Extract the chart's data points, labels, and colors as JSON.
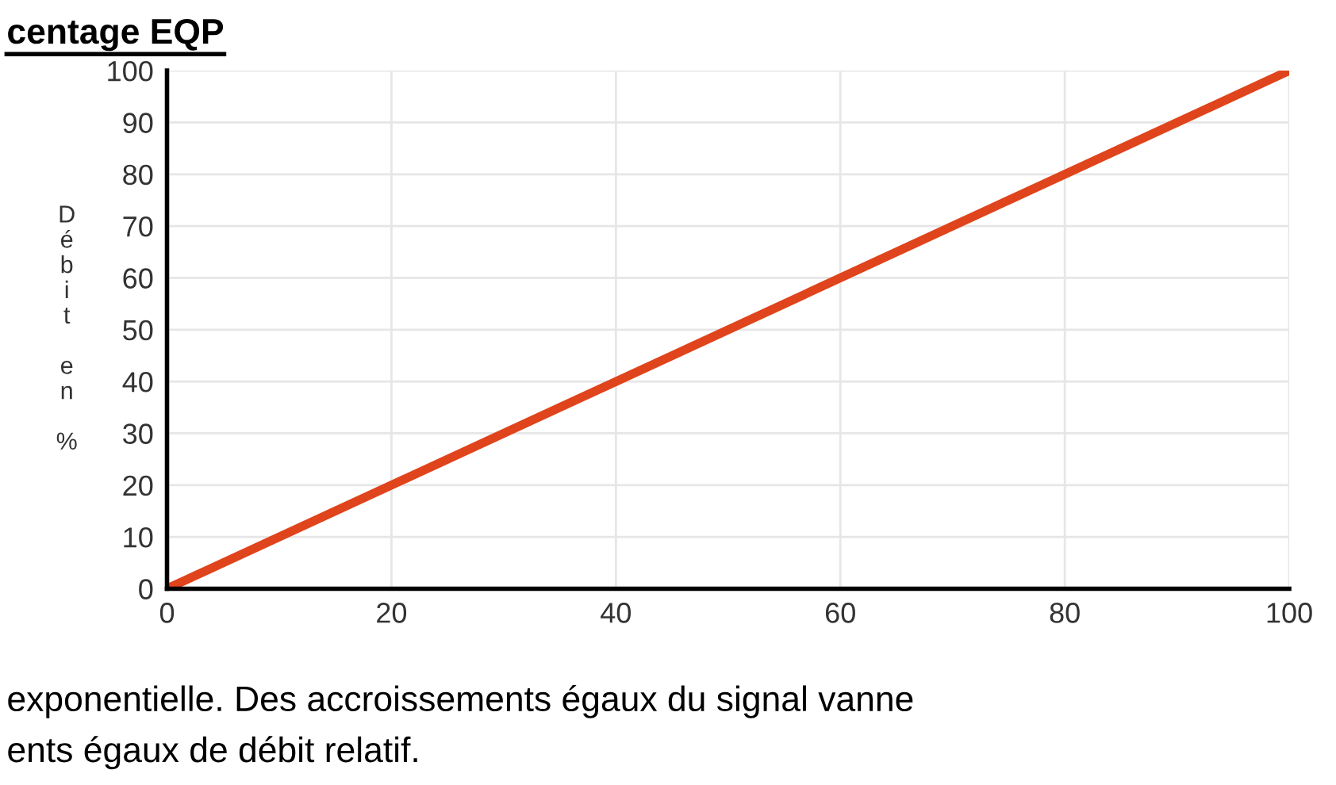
{
  "chart_data": {
    "type": "line",
    "ylabel": "Débit en %",
    "x": [
      0,
      100
    ],
    "series": [
      {
        "color": "#e0441c",
        "values": [
          0,
          100
        ]
      }
    ],
    "xlim": [
      0,
      100
    ],
    "xticks": [
      0,
      20,
      40,
      60,
      80,
      100
    ],
    "ylim": [
      0,
      100
    ],
    "yticks": [
      0,
      10,
      20,
      30,
      40,
      50,
      60,
      70,
      80,
      90,
      100
    ],
    "grid": true,
    "legend": false,
    "marker": "none",
    "line_style": "solid",
    "annotations": [
      "centage EQP",
      "exponentielle. Des accroissements égaux du signal vanne",
      "ents égaux de débit relatif."
    ]
  }
}
